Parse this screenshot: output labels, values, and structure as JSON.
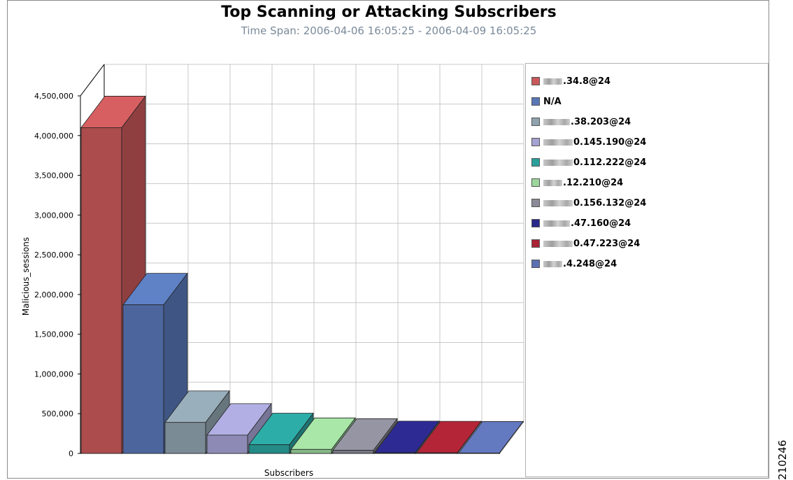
{
  "figure_number": "210246",
  "chart_data": {
    "type": "bar",
    "title": "Top Scanning or Attacking Subscribers",
    "subtitle": "Time Span: 2006-04-06 16:05:25 - 2006-04-09 16:05:25",
    "xlabel": "Subscribers",
    "ylabel": "Malicious_sessions",
    "ylim": [
      0,
      4500000
    ],
    "yticks": [
      "0",
      "500,000",
      "1,000,000",
      "1,500,000",
      "2,000,000",
      "2,500,000",
      "3,000,000",
      "3,500,000",
      "4,000,000",
      "4,500,000"
    ],
    "legend_position": "right",
    "grid": true,
    "series": [
      {
        "name": ".34.8@24",
        "value": 4100000,
        "color": "#c8585a"
      },
      {
        "name": "N/A",
        "value": 1870000,
        "color": "#5877b7"
      },
      {
        "name": ".38.203@24",
        "value": 390000,
        "color": "#8fa2ae"
      },
      {
        "name": "0.145.190@24",
        "value": 230000,
        "color": "#a4a2d2"
      },
      {
        "name": "0.112.222@24",
        "value": 110000,
        "color": "#2aa09c"
      },
      {
        "name": ".12.210@24",
        "value": 50000,
        "color": "#9cd69c"
      },
      {
        "name": "0.156.132@24",
        "value": 40000,
        "color": "#8a8a98"
      },
      {
        "name": ".47.160@24",
        "value": 10000,
        "color": "#2a2888"
      },
      {
        "name": "0.47.223@24",
        "value": 8000,
        "color": "#a82234"
      },
      {
        "name": ".4.248@24",
        "value": 5000,
        "color": "#5c70b2"
      }
    ]
  }
}
